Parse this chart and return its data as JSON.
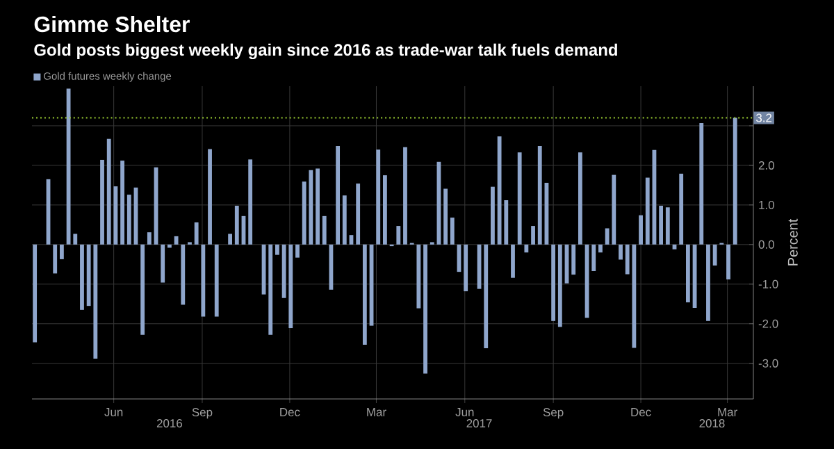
{
  "chart_data": {
    "type": "bar",
    "title": "Gimme Shelter",
    "subtitle": "Gold posts biggest weekly gain since 2016 as trade-war talk fuels demand",
    "ylabel": "Percent",
    "x": [
      "2016-03-11",
      "2016-03-18",
      "2016-03-25",
      "2016-04-01",
      "2016-04-08",
      "2016-04-15",
      "2016-04-22",
      "2016-04-29",
      "2016-05-06",
      "2016-05-13",
      "2016-05-20",
      "2016-05-27",
      "2016-06-03",
      "2016-06-10",
      "2016-06-17",
      "2016-06-24",
      "2016-07-01",
      "2016-07-08",
      "2016-07-15",
      "2016-07-22",
      "2016-07-29",
      "2016-08-05",
      "2016-08-12",
      "2016-08-19",
      "2016-08-26",
      "2016-09-02",
      "2016-09-09",
      "2016-09-16",
      "2016-09-23",
      "2016-09-30",
      "2016-10-07",
      "2016-10-14",
      "2016-10-21",
      "2016-10-28",
      "2016-11-04",
      "2016-11-11",
      "2016-11-18",
      "2016-11-25",
      "2016-12-02",
      "2016-12-09",
      "2016-12-16",
      "2016-12-23",
      "2016-12-30",
      "2017-01-06",
      "2017-01-13",
      "2017-01-20",
      "2017-01-27",
      "2017-02-03",
      "2017-02-10",
      "2017-02-17",
      "2017-02-24",
      "2017-03-03",
      "2017-03-10",
      "2017-03-17",
      "2017-03-24",
      "2017-03-31",
      "2017-04-07",
      "2017-04-14",
      "2017-04-21",
      "2017-04-28",
      "2017-05-05",
      "2017-05-12",
      "2017-05-19",
      "2017-05-26",
      "2017-06-02",
      "2017-06-09",
      "2017-06-16",
      "2017-06-23",
      "2017-06-30",
      "2017-07-07",
      "2017-07-14",
      "2017-07-21",
      "2017-07-28",
      "2017-08-04",
      "2017-08-11",
      "2017-08-18",
      "2017-08-25",
      "2017-09-01",
      "2017-09-08",
      "2017-09-15",
      "2017-09-22",
      "2017-09-29",
      "2017-10-06",
      "2017-10-13",
      "2017-10-20",
      "2017-10-27",
      "2017-11-03",
      "2017-11-10",
      "2017-11-17",
      "2017-11-24",
      "2017-12-01",
      "2017-12-08",
      "2017-12-15",
      "2017-12-22",
      "2017-12-29",
      "2018-01-05",
      "2018-01-12",
      "2018-01-19",
      "2018-01-26",
      "2018-02-02",
      "2018-02-09",
      "2018-02-16",
      "2018-02-23",
      "2018-03-02",
      "2018-03-09"
    ],
    "series": [
      {
        "name": "Gold futures weekly change",
        "color": "#8fa6cc",
        "values": [
          -2.47,
          0,
          1.65,
          -0.73,
          -0.37,
          3.94,
          0.27,
          -1.65,
          -1.55,
          -2.88,
          2.14,
          2.67,
          1.47,
          2.12,
          1.26,
          1.44,
          -2.28,
          0.31,
          1.95,
          -0.96,
          -0.08,
          0.21,
          -1.52,
          0.06,
          0.56,
          -1.82,
          2.41,
          -1.82,
          null,
          0.27,
          0.98,
          0.72,
          2.15,
          null,
          -1.26,
          -2.28,
          -0.26,
          -1.35,
          -2.11,
          -0.33,
          1.59,
          1.88,
          1.92,
          0.72,
          -1.14,
          2.49,
          1.24,
          0.24,
          1.54,
          -2.53,
          -2.05,
          2.4,
          1.75,
          -0.04,
          0.47,
          2.46,
          0.04,
          -1.61,
          -3.26,
          0.06,
          2.09,
          1.41,
          0.68,
          -0.69,
          -1.18,
          0.0,
          -1.12,
          -2.62,
          1.46,
          2.73,
          1.12,
          -0.84,
          2.33,
          -0.2,
          0.47,
          2.49,
          1.56,
          -1.93,
          -2.08,
          -0.98,
          -0.76,
          2.33,
          -1.85,
          -0.67,
          -0.2,
          0.41,
          1.76,
          -0.38,
          -0.75,
          -2.61,
          0.74,
          1.69,
          2.39,
          0.98,
          0.94,
          -0.12,
          1.79,
          -1.46,
          -1.6,
          3.07,
          -1.93,
          -0.53,
          0.04,
          -0.88,
          3.2
        ]
      }
    ],
    "xlim": [
      "2016-03-08",
      "2018-03-28"
    ],
    "xticks": [
      {
        "value": "2016-06-01",
        "label": "Jun"
      },
      {
        "value": "2016-09-01",
        "label": "Sep"
      },
      {
        "value": "2016-12-01",
        "label": "Dec"
      },
      {
        "value": "2017-03-01",
        "label": "Mar"
      },
      {
        "value": "2017-06-01",
        "label": "Jun"
      },
      {
        "value": "2017-09-01",
        "label": "Sep"
      },
      {
        "value": "2017-12-01",
        "label": "Dec"
      },
      {
        "value": "2018-03-01",
        "label": "Mar"
      }
    ],
    "x2lim": [
      "2016-03-08",
      "2018-03-28"
    ],
    "x2ticks": [
      {
        "value": "2016-07-29",
        "label": "2016"
      },
      {
        "value": "2017-06-16",
        "label": "2017"
      },
      {
        "value": "2018-02-13",
        "label": "2018"
      }
    ],
    "ylim": [
      -3.9,
      4.0
    ],
    "yticks": [
      {
        "value": -3,
        "label": "-3.0"
      },
      {
        "value": -2,
        "label": "-2.0"
      },
      {
        "value": -1,
        "label": "-1.0"
      },
      {
        "value": 0,
        "label": "0.0"
      },
      {
        "value": 1,
        "label": "1.0"
      },
      {
        "value": 2,
        "label": "2.0"
      },
      {
        "value": 3,
        "label": null
      }
    ],
    "ref_lines": [
      {
        "axis": "y",
        "value": 3.2,
        "label": "3.2",
        "color": "#9acd32",
        "line_style": "dotted"
      }
    ],
    "grid": true,
    "legend": "top left"
  }
}
